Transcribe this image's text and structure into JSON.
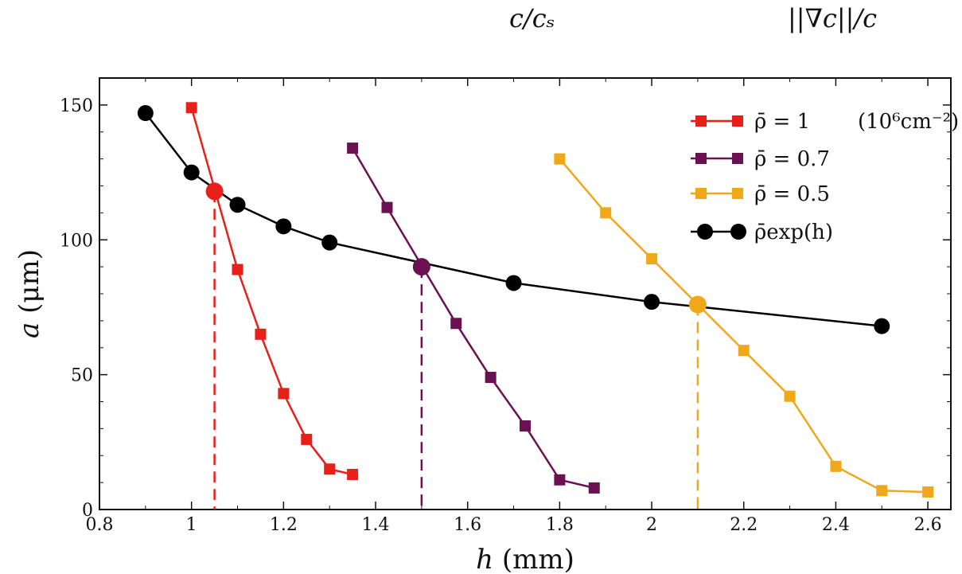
{
  "header_labels": [
    "c/cₛ",
    "||∇c||/c"
  ],
  "chart_data": {
    "type": "line",
    "xlabel": "h (mm)",
    "ylabel": "a (μm)",
    "xlim": [
      0.8,
      2.65
    ],
    "ylim": [
      0,
      160
    ],
    "xticks": [
      0.8,
      1,
      1.2,
      1.4,
      1.6,
      1.8,
      2,
      2.2,
      2.4,
      2.6
    ],
    "xtick_labels": [
      "0.8",
      "1",
      "1.2",
      "1.4",
      "1.6",
      "1.8",
      "2",
      "2.2",
      "2.4",
      "2.6"
    ],
    "yticks": [
      0,
      50,
      100,
      150
    ],
    "ytick_labels": [
      "0",
      "50",
      "100",
      "150"
    ],
    "legend_units": "(10⁶cm⁻²)",
    "series": [
      {
        "name": "ρ̄ = 1",
        "color": "#e8201a",
        "marker": "square",
        "x": [
          1.0,
          1.1,
          1.15,
          1.2,
          1.25,
          1.3,
          1.35
        ],
        "y": [
          149,
          89,
          65,
          43,
          26,
          15,
          13
        ]
      },
      {
        "name": "ρ̄ = 0.7",
        "color": "#6b1050",
        "marker": "square",
        "x": [
          1.35,
          1.425,
          1.575,
          1.65,
          1.725,
          1.8,
          1.875
        ],
        "y": [
          134,
          112,
          69,
          49,
          31,
          11,
          8
        ]
      },
      {
        "name": "ρ̄ = 0.5",
        "color": "#f0a818",
        "marker": "square",
        "x": [
          1.8,
          1.9,
          2.0,
          2.2,
          2.3,
          2.4,
          2.5,
          2.6
        ],
        "y": [
          130,
          110,
          93,
          59,
          42,
          16,
          7,
          6.5
        ]
      },
      {
        "name": "ρ̄exp(h)",
        "color": "#000000",
        "marker": "circle",
        "x": [
          0.9,
          1.0,
          1.1,
          1.2,
          1.3,
          1.7,
          2.0,
          2.5
        ],
        "y": [
          147,
          125,
          113,
          105,
          99,
          84,
          77,
          68
        ]
      }
    ],
    "intersections": [
      {
        "x": 1.05,
        "y": 118,
        "color": "#e8201a"
      },
      {
        "x": 1.5,
        "y": 90,
        "color": "#6b1050"
      },
      {
        "x": 2.1,
        "y": 76,
        "color": "#f0a818"
      }
    ]
  }
}
